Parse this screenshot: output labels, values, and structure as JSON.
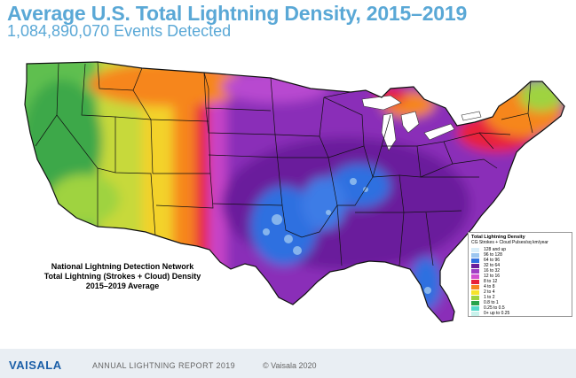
{
  "header": {
    "title": "Average U.S. Total Lightning Density, 2015–2019",
    "subtitle": "1,084,890,070 Events Detected"
  },
  "caption": {
    "line1": "National Lightning Detection Network",
    "line2": "Total Lightning (Strokes + Cloud) Density",
    "line3": "2015–2019 Average"
  },
  "legend": {
    "title": "Total Lightning Density",
    "subtitle": "CG Strokes + Cloud Pulses/sq km/year",
    "items": [
      {
        "label": "128 and up",
        "color": "#d9eefa"
      },
      {
        "label": "96    to  128",
        "color": "#9cc6f0"
      },
      {
        "label": "64    to  96",
        "color": "#2f6fe0"
      },
      {
        "label": "32    to  64",
        "color": "#6a1f9c"
      },
      {
        "label": "16    to  32",
        "color": "#a13ec4"
      },
      {
        "label": "12    to  16",
        "color": "#d24fd0"
      },
      {
        "label": "8      to  12",
        "color": "#e8213a"
      },
      {
        "label": "4      to  8",
        "color": "#f6861f"
      },
      {
        "label": "2      to  4",
        "color": "#f7e32b"
      },
      {
        "label": "1      to  2",
        "color": "#9fd33f"
      },
      {
        "label": "0.8    to  1",
        "color": "#27a34a"
      },
      {
        "label": "0.25   to  0.5",
        "color": "#56d9c9"
      },
      {
        "label": "0+ up to 0.25",
        "color": "#c8f2ec"
      }
    ]
  },
  "footer": {
    "logo": "VAISALA",
    "report": "ANNUAL LIGHTNING REPORT 2019",
    "copyright": "© Vaisala 2020"
  },
  "colors": {
    "title": "#5aa8d6",
    "logo": "#1b5fa8",
    "footer_band": "#e9eef3"
  }
}
